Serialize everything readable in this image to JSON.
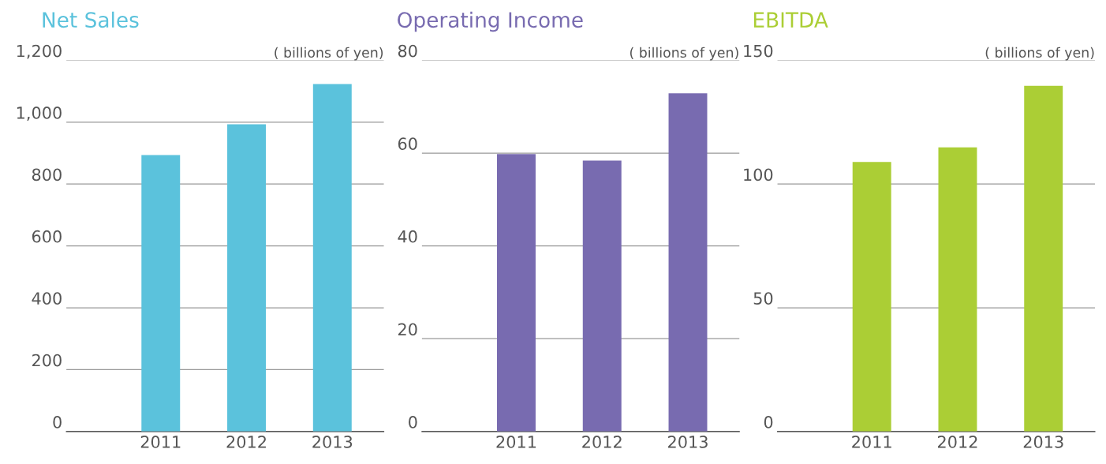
{
  "chart_data": [
    {
      "type": "bar",
      "title": "Net Sales",
      "annotations": [
        "( billions of yen)"
      ],
      "categories": [
        "2011",
        "2012",
        "2013"
      ],
      "values": [
        894,
        993,
        1123
      ],
      "color": "#5bc2dc",
      "ylim": [
        0,
        1200
      ],
      "yticks": [
        {
          "value": 0,
          "label": "0"
        },
        {
          "value": 200,
          "label": "200"
        },
        {
          "value": 400,
          "label": "400"
        },
        {
          "value": 600,
          "label": "600"
        },
        {
          "value": 800,
          "label": "800"
        },
        {
          "value": 1000,
          "label": "1,000"
        },
        {
          "value": 1200,
          "label": "1,200"
        }
      ],
      "grid": "y"
    },
    {
      "type": "bar",
      "title": "Operating Income",
      "annotations": [
        "( billions of yen)"
      ],
      "categories": [
        "2011",
        "2012",
        "2013"
      ],
      "values": [
        59.8,
        58.4,
        72.9
      ],
      "color": "#786bb0",
      "ylim": [
        0,
        80
      ],
      "yticks": [
        0,
        20,
        40,
        60,
        80
      ],
      "grid": "y"
    },
    {
      "type": "bar",
      "title": "EBITDA",
      "annotations": [
        "( billions of yen)"
      ],
      "categories": [
        "2011",
        "2012",
        "2013"
      ],
      "values": [
        108.9,
        114.8,
        139.7
      ],
      "color": "#abce35",
      "ylim": [
        0,
        150
      ],
      "yticks": [
        0,
        50,
        100,
        150
      ],
      "grid": "y"
    }
  ]
}
